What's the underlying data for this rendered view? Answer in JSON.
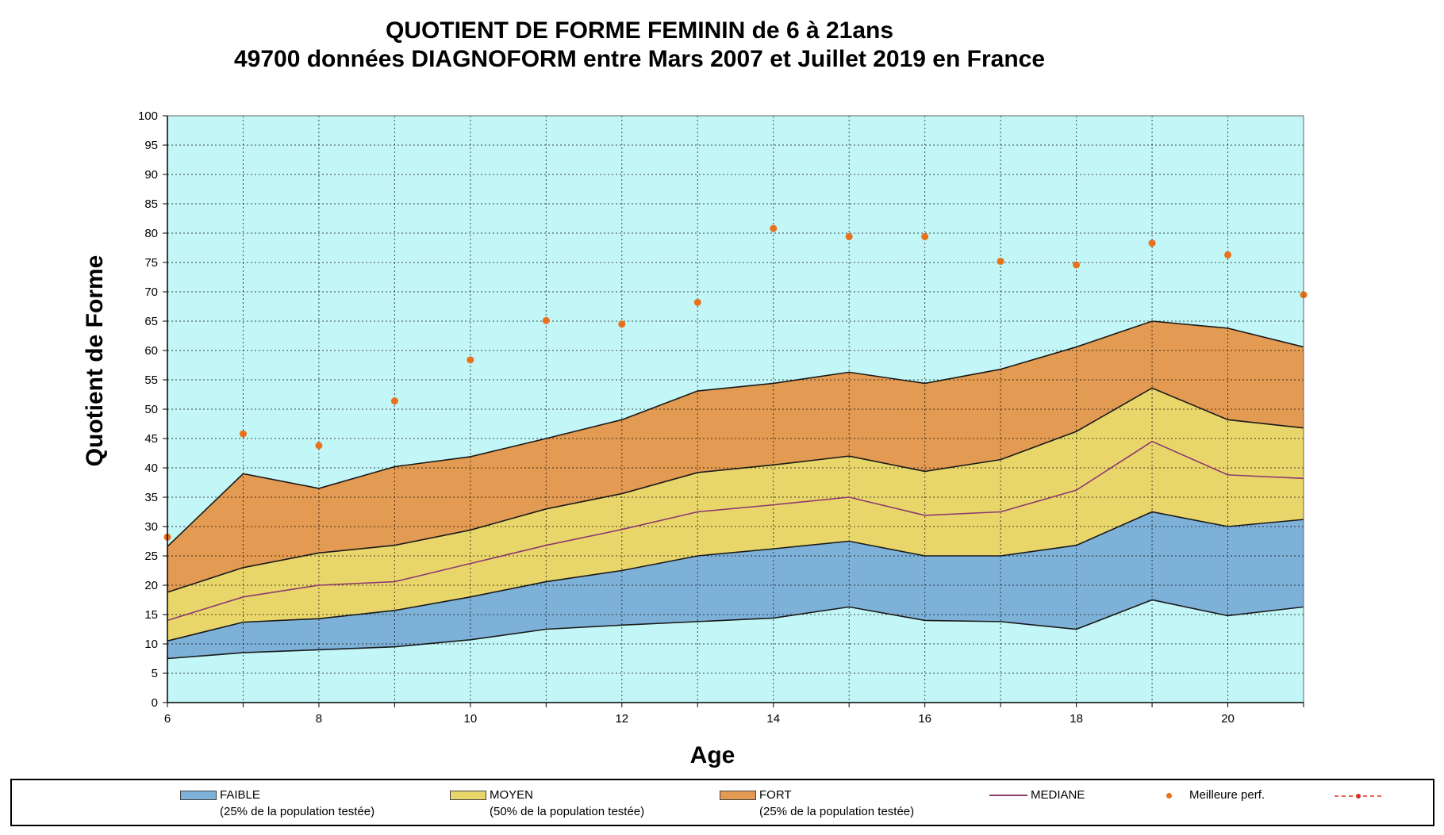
{
  "title_line1": "QUOTIENT DE FORME FEMININ de 6 à 21ans",
  "title_line2": "49700 données DIAGNOFORM entre Mars 2007 et Juillet 2019 en France",
  "chart_data": {
    "type": "area",
    "xlabel": "Age",
    "ylabel": "Quotient de Forme",
    "x": [
      6,
      7,
      8,
      9,
      10,
      11,
      12,
      13,
      14,
      15,
      16,
      17,
      18,
      19,
      20,
      21
    ],
    "xlim": [
      6,
      21
    ],
    "ylim": [
      0,
      100
    ],
    "x_tick_labels": [
      6,
      8,
      10,
      12,
      14,
      16,
      18,
      20
    ],
    "y_tick_step": 5,
    "grid": true,
    "legend_placement": "bottom",
    "boundaries": {
      "low": [
        7.5,
        8.5,
        9,
        9.5,
        10.7,
        12.5,
        13.2,
        13.8,
        14.4,
        16.3,
        14,
        13.8,
        12.5,
        17.5,
        14.8,
        16.3
      ],
      "faible_top": [
        10.5,
        13.7,
        14.3,
        15.7,
        18,
        20.6,
        22.5,
        25,
        26.2,
        27.5,
        25,
        25,
        26.8,
        32.5,
        30,
        31.2
      ],
      "moyen_top": [
        18.8,
        23,
        25.5,
        26.8,
        29.4,
        33,
        35.6,
        39.2,
        40.5,
        42,
        39.4,
        41.4,
        46.2,
        53.6,
        48.2,
        46.8
      ],
      "fort_top": [
        26.6,
        39,
        36.5,
        40.2,
        41.9,
        45,
        48.2,
        53.1,
        54.4,
        56.3,
        54.4,
        56.8,
        60.6,
        65,
        63.8,
        60.6
      ]
    },
    "series": [
      {
        "name": "MEDIANE",
        "values": [
          14,
          18,
          20,
          20.6,
          23.7,
          26.8,
          29.5,
          32.5,
          33.7,
          35,
          31.9,
          32.5,
          36.2,
          44.5,
          38.8,
          38.2
        ]
      },
      {
        "name": "Meilleure perf.",
        "values": [
          28.2,
          45.8,
          43.8,
          51.4,
          58.4,
          65.1,
          64.5,
          68.2,
          80.8,
          79.4,
          79.4,
          75.2,
          74.6,
          78.3,
          76.3,
          69.5
        ]
      }
    ],
    "legend": [
      {
        "label": "FAIBLE",
        "sub": "(25% de la population testée)",
        "color": "#7eb1d8"
      },
      {
        "label": "MOYEN",
        "sub": "(50% de la population testée)",
        "color": "#e9d66b"
      },
      {
        "label": "FORT",
        "sub": "(25% de la population testée)",
        "color": "#e39a52"
      },
      {
        "label": "MEDIANE",
        "color": "#8b3a6e"
      },
      {
        "label": "Meilleure perf.",
        "color": "#e8721c"
      }
    ],
    "plot_background": "#c3f6f6"
  }
}
